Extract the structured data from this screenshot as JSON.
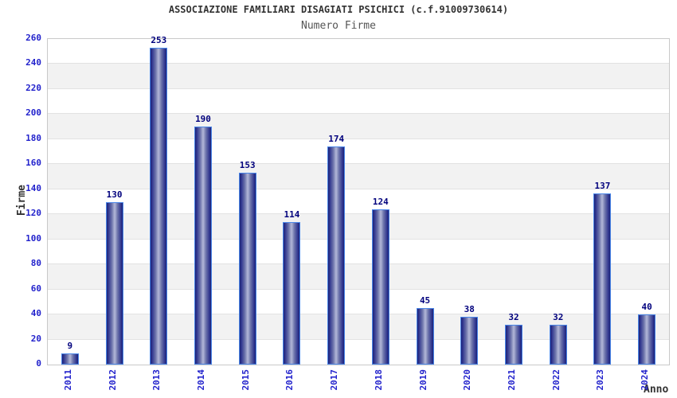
{
  "chart_data": {
    "type": "bar",
    "title": "ASSOCIAZIONE FAMILIARI DISAGIATI PSICHICI (c.f.91009730614)",
    "subtitle": "Numero Firme",
    "xlabel": "Anno",
    "ylabel": "Firme",
    "categories": [
      "2011",
      "2012",
      "2013",
      "2014",
      "2015",
      "2016",
      "2017",
      "2018",
      "2019",
      "2020",
      "2021",
      "2022",
      "2023",
      "2024"
    ],
    "values": [
      9,
      130,
      253,
      190,
      153,
      114,
      174,
      124,
      45,
      38,
      32,
      32,
      137,
      40
    ],
    "ylim": [
      0,
      260
    ],
    "ytick_step": 20,
    "yticks": [
      0,
      20,
      40,
      60,
      80,
      100,
      120,
      140,
      160,
      180,
      200,
      220,
      240,
      260
    ],
    "grid": "horizontal-bands",
    "legend": "none",
    "colors": {
      "tick_blue": "#2222cc",
      "value_label_navy": "#00007d",
      "title_color": "#333333",
      "subtitle_color": "#555555",
      "axis_title_color": "#333333",
      "band_gray": "#f2f2f2",
      "band_white": "#ffffff",
      "gridline": "#e2e2e2",
      "plot_border": "#c9c9c9",
      "bar_border": "#4a86e8",
      "bar_dark": "#1b2277",
      "bar_mid": "#30368f",
      "bar_light": "#b3b8d8"
    }
  }
}
